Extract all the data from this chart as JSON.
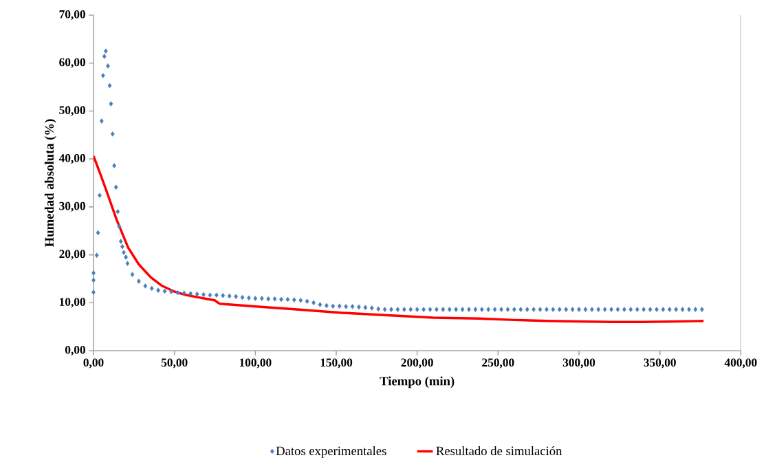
{
  "chart_data": {
    "type": "scatter",
    "xlabel": "Tiempo (min)",
    "ylabel": "Humedad absoluta (%)",
    "xlim": [
      0,
      400
    ],
    "ylim": [
      0,
      70
    ],
    "xticks": [
      {
        "value": 0,
        "label": "0,00"
      },
      {
        "value": 50,
        "label": "50,00"
      },
      {
        "value": 100,
        "label": "100,00"
      },
      {
        "value": 150,
        "label": "150,00"
      },
      {
        "value": 200,
        "label": "200,00"
      },
      {
        "value": 250,
        "label": "250,00"
      },
      {
        "value": 300,
        "label": "300,00"
      },
      {
        "value": 350,
        "label": "350,00"
      },
      {
        "value": 400,
        "label": "400,00"
      }
    ],
    "yticks": [
      {
        "value": 0,
        "label": "0,00"
      },
      {
        "value": 10,
        "label": "10,00"
      },
      {
        "value": 20,
        "label": "20,00"
      },
      {
        "value": 30,
        "label": "30,00"
      },
      {
        "value": 40,
        "label": "40,00"
      },
      {
        "value": 50,
        "label": "50,00"
      },
      {
        "value": 60,
        "label": "60,00"
      },
      {
        "value": 70,
        "label": "70,00"
      }
    ],
    "grid": false,
    "legend": "bottom",
    "series": [
      {
        "name": "Datos experimentales",
        "marker": "diamond",
        "color": "#4a7ebb",
        "x": [
          0,
          0,
          0,
          2,
          2.8,
          3.8,
          5,
          5.9,
          6.7,
          7.6,
          8.9,
          10,
          10.8,
          11.8,
          12.8,
          13.9,
          15,
          15.9,
          16.9,
          17.8,
          18.7,
          20,
          21,
          24,
          28,
          32,
          36,
          40,
          44,
          48,
          52,
          56,
          60,
          64,
          68,
          72,
          76,
          80,
          84,
          88,
          92,
          96,
          100,
          104,
          108,
          112,
          116,
          120,
          124,
          128,
          132,
          136,
          140,
          144,
          148,
          152,
          156,
          160,
          164,
          168,
          172,
          176,
          180,
          184,
          188,
          192,
          196,
          200,
          204,
          208,
          212,
          216,
          220,
          224,
          228,
          232,
          236,
          240,
          244,
          248,
          252,
          256,
          260,
          264,
          268,
          272,
          276,
          280,
          284,
          288,
          292,
          296,
          300,
          304,
          308,
          312,
          316,
          320,
          324,
          328,
          332,
          336,
          340,
          344,
          348,
          352,
          356,
          360,
          364,
          368,
          372,
          376
        ],
        "values": [
          12.2,
          14.7,
          16.2,
          19.9,
          24.6,
          32.4,
          47.9,
          57.4,
          61.4,
          62.5,
          59.4,
          55.3,
          51.5,
          45.2,
          38.6,
          34.1,
          29.0,
          25.9,
          22.8,
          21.7,
          20.5,
          19.5,
          18.2,
          15.9,
          14.5,
          13.5,
          13.0,
          12.6,
          12.4,
          12.3,
          12.1,
          12.0,
          11.9,
          11.8,
          11.7,
          11.6,
          11.6,
          11.5,
          11.4,
          11.3,
          11.1,
          11.0,
          10.9,
          10.9,
          10.8,
          10.8,
          10.7,
          10.7,
          10.6,
          10.5,
          10.3,
          10.0,
          9.6,
          9.4,
          9.3,
          9.3,
          9.2,
          9.2,
          9.1,
          9.0,
          8.9,
          8.7,
          8.6,
          8.6,
          8.6,
          8.6,
          8.6,
          8.6,
          8.6,
          8.6,
          8.6,
          8.6,
          8.6,
          8.6,
          8.6,
          8.6,
          8.6,
          8.6,
          8.6,
          8.6,
          8.6,
          8.6,
          8.6,
          8.6,
          8.6,
          8.6,
          8.6,
          8.6,
          8.6,
          8.6,
          8.6,
          8.6,
          8.6,
          8.6,
          8.6,
          8.6,
          8.6,
          8.6,
          8.6,
          8.6,
          8.6,
          8.6,
          8.6,
          8.6,
          8.6,
          8.6,
          8.6,
          8.6,
          8.6,
          8.6,
          8.6,
          8.6
        ]
      },
      {
        "name": "Resultado de simulación",
        "type": "line",
        "marker": "none",
        "line_style": "solid",
        "color": "#ff0000",
        "x": [
          0,
          3.5,
          7.3,
          14.3,
          21.4,
          28,
          35.4,
          42,
          49.4,
          56,
          63.5,
          70,
          75,
          77,
          78,
          97.5,
          125.6,
          153.7,
          181.8,
          210,
          238,
          260,
          280.6,
          300,
          320,
          340,
          360,
          377
        ],
        "values": [
          40.6,
          37.5,
          34.0,
          27.3,
          21.5,
          18.0,
          15.3,
          13.6,
          12.4,
          11.7,
          11.2,
          10.8,
          10.5,
          10.0,
          9.8,
          9.3,
          8.6,
          7.9,
          7.4,
          6.9,
          6.7,
          6.4,
          6.2,
          6.1,
          6.0,
          6.0,
          6.1,
          6.2
        ]
      }
    ]
  }
}
